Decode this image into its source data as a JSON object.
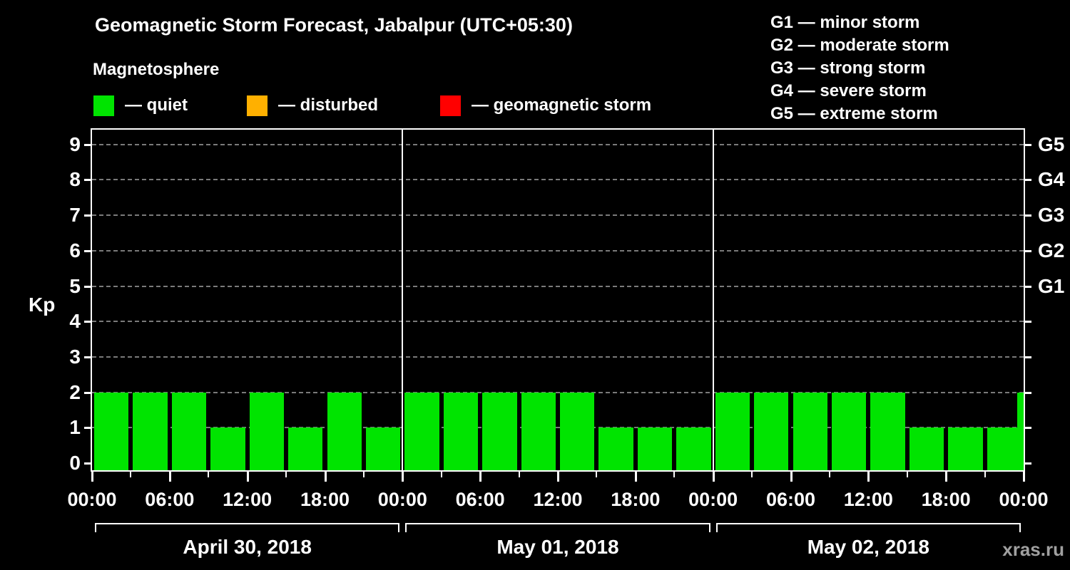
{
  "title": "Geomagnetic Storm Forecast, Jabalpur (UTC+05:30)",
  "subtitle": "Magnetosphere",
  "watermark": "xras.ru",
  "colors": {
    "background": "#000000",
    "axis": "#ffffff",
    "grid": "#7a7a7a",
    "quiet": "#00e400",
    "disturbed": "#ffb000",
    "storm": "#ff0000"
  },
  "kp_legend": [
    {
      "name": "quiet",
      "label": "— quiet",
      "color": "#00e400"
    },
    {
      "name": "disturbed",
      "label": "— disturbed",
      "color": "#ffb000"
    },
    {
      "name": "geomagnetic-storm",
      "label": "— geomagnetic storm",
      "color": "#ff0000"
    }
  ],
  "g_legend": [
    "G1 — minor storm",
    "G2 — moderate storm",
    "G3 — strong storm",
    "G4 — severe storm",
    "G5 — extreme storm"
  ],
  "chart_data": {
    "type": "bar",
    "title": "Geomagnetic Storm Forecast, Jabalpur (UTC+05:30)",
    "ylabel": "Kp",
    "ylim": [
      0,
      9.5
    ],
    "yticks": [
      0,
      1,
      2,
      3,
      4,
      5,
      6,
      7,
      8,
      9
    ],
    "right_axis": [
      {
        "value": 5,
        "label": "G1"
      },
      {
        "value": 6,
        "label": "G2"
      },
      {
        "value": 7,
        "label": "G3"
      },
      {
        "value": 8,
        "label": "G4"
      },
      {
        "value": 9,
        "label": "G5"
      }
    ],
    "grid": "dashed horizontal lines at integer Kp values",
    "legend_position": "top",
    "interval_hours": 3,
    "bar_color": "#00e400",
    "days": [
      {
        "date": "April 30, 2018",
        "values": [
          2,
          2,
          2,
          1,
          2,
          1,
          2,
          1
        ]
      },
      {
        "date": "May 01, 2018",
        "values": [
          2,
          2,
          2,
          2,
          2,
          1,
          1,
          1
        ]
      },
      {
        "date": "May 02, 2018",
        "values": [
          2,
          2,
          2,
          2,
          2,
          1,
          1,
          1
        ]
      }
    ],
    "next_partial_value": 2,
    "x_tick_labels": [
      "00:00",
      "06:00",
      "12:00",
      "18:00",
      "00:00",
      "06:00",
      "12:00",
      "18:00",
      "00:00",
      "06:00",
      "12:00",
      "18:00",
      "00:00"
    ]
  }
}
